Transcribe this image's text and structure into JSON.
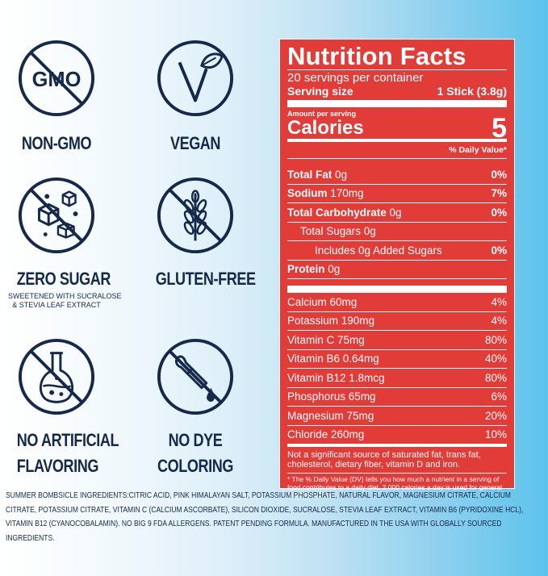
{
  "badges": [
    {
      "icon": "gmo-icon",
      "label": "NON-GMO",
      "badge_text": "GMO"
    },
    {
      "icon": "vegan-icon",
      "label": "VEGAN"
    },
    {
      "icon": "sugar-cubes-icon",
      "label": "ZERO SUGAR",
      "sub1": "SWEETENED WITH SUCRALOSE",
      "sub2": "& STEVIA LEAF EXTRACT"
    },
    {
      "icon": "wheat-icon",
      "label": "GLUTEN-FREE"
    },
    {
      "icon": "flask-icon",
      "label1": "NO ARTIFICIAL",
      "label2": "FLAVORING"
    },
    {
      "icon": "dropper-icon",
      "label1": "NO DYE",
      "label2": "COLORING"
    }
  ],
  "nutrition": {
    "title": "Nutrition Facts",
    "servings": "20 servings per container",
    "serving_size_label": "Serving size",
    "serving_size_value": "1 Stick (3.8g)",
    "amount_per_serving": "Amount per serving",
    "calories_label": "Calories",
    "calories_value": "5",
    "dv_header": "% Daily Value*",
    "rows": [
      {
        "bold": "Total Fat",
        "amt": "0g",
        "dv": "0%",
        "dvbold": true,
        "indent": 0
      },
      {
        "bold": "Sodium",
        "amt": "170mg",
        "dv": "7%",
        "dvbold": true,
        "indent": 0
      },
      {
        "bold": "Total Carbohydrate",
        "amt": "0g",
        "dv": "0%",
        "dvbold": true,
        "indent": 0
      },
      {
        "bold": "",
        "amt": "Total Sugars 0g",
        "dv": "",
        "dvbold": false,
        "indent": 1
      },
      {
        "bold": "",
        "amt": "Includes 0g Added Sugars",
        "dv": "0%",
        "dvbold": true,
        "indent": 2
      },
      {
        "bold": "Protein",
        "amt": "0g",
        "dv": "",
        "dvbold": false,
        "indent": 0
      }
    ],
    "vitamins": [
      {
        "name": "Calcium 60mg",
        "dv": "4%"
      },
      {
        "name": "Potassium 190mg",
        "dv": "4%"
      },
      {
        "name": "Vitamin C 75mg",
        "dv": "80%"
      },
      {
        "name": "Vitamin B6 0.64mg",
        "dv": "40%"
      },
      {
        "name": "Vitamin B12 1.8mcg",
        "dv": "80%"
      },
      {
        "name": "Phosphorus 65mg",
        "dv": "6%"
      },
      {
        "name": "Magnesium 75mg",
        "dv": "20%"
      },
      {
        "name": "Chloride 260mg",
        "dv": "10%"
      }
    ],
    "not_significant": "Not a significant source of saturated fat, trans fat, cholesterol, dietary fiber, vitamin D and iron.",
    "footnote": "* The % Daily Value (DV) tells you how much a nutrient in a serving of food contributes to a daily diet. 2,000 calories a day is used for general nutrition advice."
  },
  "ingredients": {
    "heading": "SUMMER BOMBSICLE INGREDIENTS:",
    "text": "CITRIC ACID, PINK HIMALAYAN SALT, POTASSIUM PHOSPHATE, NATURAL FLAVOR, MAGNESIUM CITRATE, CALCIUM CITRATE, POTASSIUM CITRATE, VITAMIN C (CALCIUM ASCORBATE), SILICON DIOXIDE, SUCRALOSE, STEVIA LEAF EXTRACT, VITAMIN B6 (PYRIDOXINE HCL), VITAMIN B12 (CYANOCOBALAMIN). NO BIG 9 FDA ALLERGENS. PATENT PENDING FORMULA. MANUFACTURED IN THE USA WITH GLOBALLY SOURCED INGREDIENTS."
  },
  "colors": {
    "navy": "#16294a",
    "panel_red": "#e23c39"
  }
}
